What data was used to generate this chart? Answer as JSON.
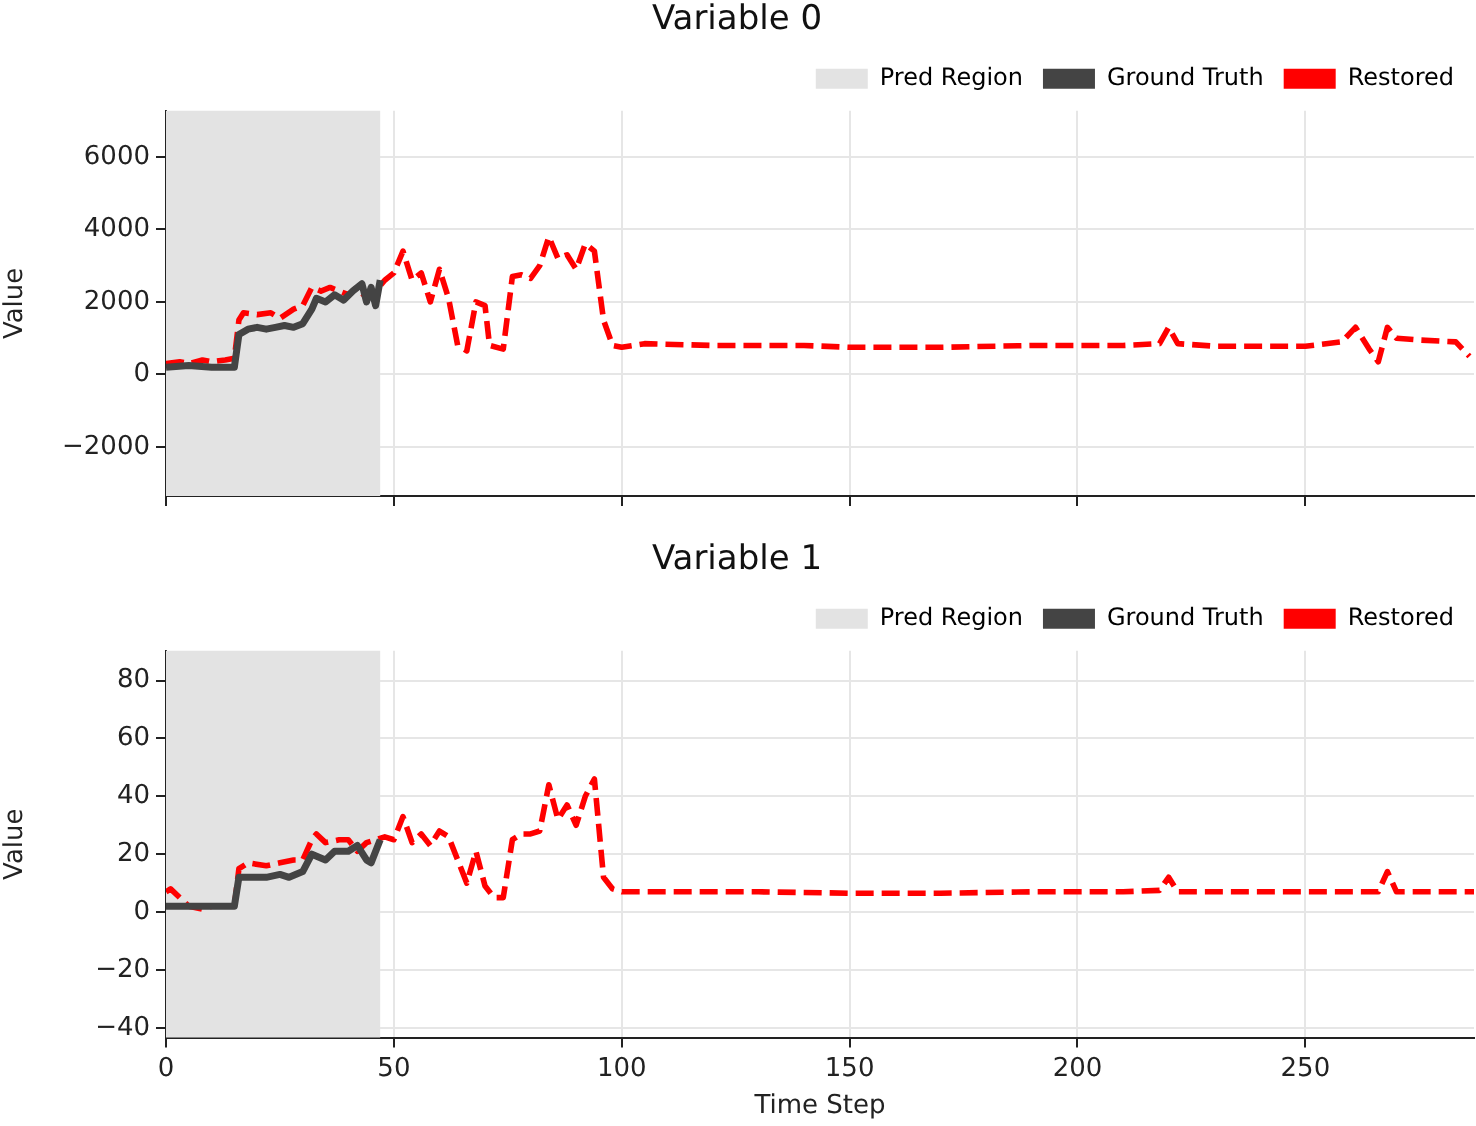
{
  "chart_data": [
    {
      "type": "line",
      "title": "Variable 0",
      "ylabel": "Value",
      "xlim": [
        0,
        287
      ],
      "xticks": [
        0,
        50,
        100,
        150,
        200,
        250
      ],
      "ylim": [
        -3350,
        7270
      ],
      "yticks": [
        -2000,
        0,
        2000,
        4000,
        6000
      ],
      "grid": true,
      "legend": "top right",
      "tick_labels": "y",
      "bands": [
        {
          "axis": "x",
          "from": 0,
          "to": 47,
          "label": "Pred Region",
          "color": "#e3e3e3"
        }
      ],
      "series": [
        {
          "name": "Ground Truth",
          "color": "#444444",
          "line_style": "solid",
          "x": [
            0,
            5,
            10,
            15,
            16,
            18,
            20,
            22,
            24,
            26,
            28,
            30,
            32,
            33,
            35,
            37,
            39,
            41,
            43,
            44,
            45,
            46,
            47
          ],
          "values": [
            200,
            250,
            200,
            200,
            1100,
            1250,
            1300,
            1250,
            1300,
            1350,
            1300,
            1400,
            1800,
            2100,
            2000,
            2200,
            2050,
            2300,
            2500,
            2000,
            2400,
            1900,
            2600
          ]
        },
        {
          "name": "Restored",
          "color": "#ff0000",
          "line_style": "dashed",
          "x": [
            0,
            3,
            5,
            8,
            10,
            13,
            15,
            16,
            17,
            20,
            23,
            25,
            28,
            30,
            32,
            34,
            36,
            38,
            40,
            42,
            44,
            46,
            48,
            50,
            52,
            54,
            56,
            58,
            60,
            62,
            64,
            66,
            68,
            70,
            71,
            74,
            76,
            78,
            80,
            82,
            84,
            86,
            88,
            90,
            92,
            94,
            96,
            98,
            100,
            105,
            120,
            130,
            140,
            150,
            170,
            190,
            210,
            218,
            220,
            222,
            230,
            250,
            258,
            261,
            264,
            266,
            268,
            270,
            275,
            283,
            286
          ],
          "values": [
            300,
            350,
            300,
            400,
            350,
            400,
            450,
            1500,
            1700,
            1650,
            1700,
            1550,
            1800,
            1900,
            2400,
            2300,
            2400,
            2300,
            2200,
            2400,
            2100,
            2300,
            2600,
            2800,
            3400,
            2600,
            2800,
            2000,
            2900,
            2100,
            800,
            650,
            2000,
            1900,
            800,
            700,
            2700,
            2750,
            2650,
            3000,
            3800,
            3200,
            3300,
            2900,
            3600,
            3400,
            1500,
            800,
            750,
            850,
            800,
            800,
            800,
            750,
            750,
            800,
            800,
            850,
            1300,
            850,
            780,
            780,
            900,
            1300,
            700,
            350,
            1300,
            1000,
            950,
            900,
            500
          ]
        }
      ]
    },
    {
      "type": "line",
      "title": "Variable 1",
      "xlabel": "Time Step",
      "ylabel": "Value",
      "xlim": [
        0,
        287
      ],
      "xticks": [
        0,
        50,
        100,
        150,
        200,
        250
      ],
      "ylim": [
        -43.4,
        90.3
      ],
      "yticks": [
        -40,
        -20,
        0,
        20,
        40,
        60,
        80
      ],
      "grid": true,
      "legend": "top right",
      "bands": [
        {
          "axis": "x",
          "from": 0,
          "to": 47,
          "label": "Pred Region",
          "color": "#e3e3e3"
        }
      ],
      "series": [
        {
          "name": "Ground Truth",
          "color": "#444444",
          "line_style": "solid",
          "x": [
            0,
            5,
            10,
            15,
            16,
            18,
            22,
            25,
            27,
            30,
            32,
            35,
            37,
            40,
            42,
            44,
            45,
            47
          ],
          "values": [
            2,
            2,
            2,
            2,
            12,
            12,
            12,
            13,
            12,
            14,
            20,
            18,
            21,
            21,
            23,
            18,
            17,
            25
          ]
        },
        {
          "name": "Restored",
          "color": "#ff0000",
          "line_style": "dashed",
          "x": [
            0,
            1,
            3,
            5,
            8,
            10,
            13,
            15,
            16,
            18,
            22,
            25,
            28,
            30,
            32,
            33,
            35,
            38,
            40,
            42,
            44,
            46,
            48,
            50,
            52,
            54,
            56,
            58,
            60,
            62,
            64,
            66,
            68,
            70,
            72,
            74,
            76,
            78,
            80,
            82,
            84,
            86,
            88,
            90,
            92,
            94,
            96,
            98,
            100,
            110,
            130,
            150,
            170,
            190,
            210,
            218,
            220,
            222,
            240,
            260,
            266,
            268,
            270,
            287
          ],
          "values": [
            7,
            8,
            5,
            2,
            1,
            2,
            2,
            2,
            15,
            17,
            16,
            17,
            18,
            18,
            25,
            27,
            24,
            25,
            25,
            21,
            24,
            25,
            26,
            25,
            33,
            24,
            27,
            23,
            28,
            26,
            18,
            10,
            21,
            9,
            5,
            5,
            25,
            27,
            27,
            28,
            44,
            32,
            37,
            30,
            40,
            46,
            12,
            8,
            7,
            7,
            7,
            6.5,
            6.5,
            7,
            7,
            7.5,
            12,
            7,
            7,
            7,
            7,
            14,
            7,
            7
          ]
        }
      ]
    }
  ]
}
